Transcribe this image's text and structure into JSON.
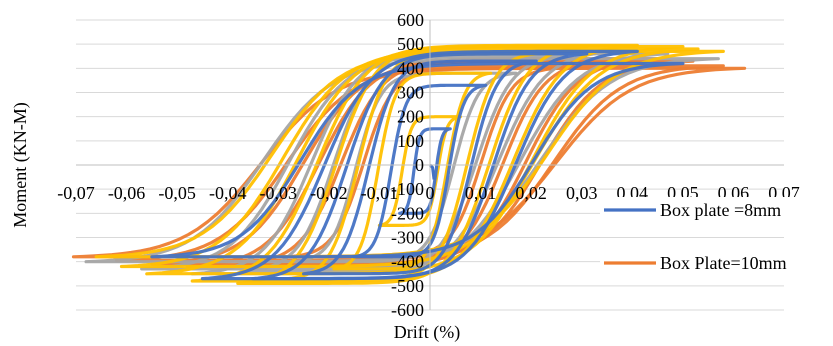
{
  "chart_data": {
    "type": "line",
    "title": "",
    "xlabel": "Drift (%)",
    "ylabel": "Moment (KN-M)",
    "xlim": [
      -0.07,
      0.07
    ],
    "ylim": [
      -600,
      600
    ],
    "x_ticks": [
      -0.07,
      -0.06,
      -0.05,
      -0.04,
      -0.03,
      -0.02,
      -0.01,
      0,
      0.01,
      0.02,
      0.03,
      0.04,
      0.05,
      0.06,
      0.07
    ],
    "x_tick_labels": [
      "-0,07",
      "-0,06",
      "-0,05",
      "-0,04",
      "-0,03",
      "-0,02",
      "-0,01",
      "0",
      "0,01",
      "0,02",
      "0,03",
      "0,04",
      "0,05",
      "0,06",
      "0,07"
    ],
    "y_ticks": [
      -600,
      -500,
      -400,
      -300,
      -200,
      -100,
      0,
      100,
      200,
      300,
      400,
      500,
      600
    ],
    "y_tick_labels": [
      "-600",
      "-500",
      "-400",
      "-300",
      "-200",
      "-100",
      "0",
      "100",
      "200",
      "300",
      "400",
      "500",
      "600"
    ],
    "grid": "horizontal",
    "legend_position": "right",
    "series": [
      {
        "name": "Box Plate=10mm",
        "color": "#ED7D31",
        "cycles": [
          {
            "amp": 0.0622,
            "peak": 400,
            "neg_amp": -0.0705,
            "neg_peak": -380
          },
          {
            "amp": 0.058,
            "peak": 410,
            "neg_amp": -0.062,
            "neg_peak": -395
          },
          {
            "amp": 0.052,
            "peak": 430,
            "neg_amp": -0.055,
            "neg_peak": -410
          },
          {
            "amp": 0.045,
            "peak": 440,
            "neg_amp": -0.048,
            "neg_peak": -420
          },
          {
            "amp": 0.035,
            "peak": 430,
            "neg_amp": -0.038,
            "neg_peak": -410
          },
          {
            "amp": 0.025,
            "peak": 400,
            "neg_amp": -0.028,
            "neg_peak": -380
          }
        ]
      },
      {
        "name": "",
        "color": "#A5A5A5",
        "cycles": [
          {
            "amp": 0.057,
            "peak": 440,
            "neg_amp": -0.068,
            "neg_peak": -400
          },
          {
            "amp": 0.047,
            "peak": 460,
            "neg_amp": -0.057,
            "neg_peak": -430
          },
          {
            "amp": 0.037,
            "peak": 470,
            "neg_amp": -0.047,
            "neg_peak": -450
          },
          {
            "amp": 0.027,
            "peak": 450,
            "neg_amp": -0.037,
            "neg_peak": -440
          },
          {
            "amp": 0.017,
            "peak": 380,
            "neg_amp": -0.027,
            "neg_peak": -400
          }
        ]
      },
      {
        "name": "",
        "color": "#FFC000",
        "cycles": [
          {
            "amp": 0.058,
            "peak": 470,
            "neg_amp": -0.066,
            "neg_peak": -380
          },
          {
            "amp": 0.053,
            "peak": 480,
            "neg_amp": -0.061,
            "neg_peak": -420
          },
          {
            "amp": 0.05,
            "peak": 490,
            "neg_amp": -0.056,
            "neg_peak": -450
          },
          {
            "amp": 0.041,
            "peak": 495,
            "neg_amp": -0.047,
            "neg_peak": -480
          },
          {
            "amp": 0.031,
            "peak": 490,
            "neg_amp": -0.038,
            "neg_peak": -490
          },
          {
            "amp": 0.021,
            "peak": 460,
            "neg_amp": -0.028,
            "neg_peak": -470
          },
          {
            "amp": 0.012,
            "peak": 380,
            "neg_amp": -0.019,
            "neg_peak": -430
          },
          {
            "amp": 0.006,
            "peak": 200,
            "neg_amp": -0.01,
            "neg_peak": -250
          }
        ]
      },
      {
        "name": "Box plate =8mm",
        "color": "#4472C4",
        "cycles": [
          {
            "amp": 0.05,
            "peak": 420,
            "neg_amp": -0.055,
            "neg_peak": -380
          },
          {
            "amp": 0.041,
            "peak": 470,
            "neg_amp": -0.045,
            "neg_peak": -470
          },
          {
            "amp": 0.031,
            "peak": 460,
            "neg_amp": -0.035,
            "neg_peak": -470
          },
          {
            "amp": 0.021,
            "peak": 430,
            "neg_amp": -0.025,
            "neg_peak": -450
          },
          {
            "amp": 0.011,
            "peak": 330,
            "neg_amp": -0.015,
            "neg_peak": -380
          },
          {
            "amp": 0.004,
            "peak": 150,
            "neg_amp": -0.006,
            "neg_peak": -200
          }
        ]
      }
    ],
    "legend": [
      {
        "label": "Box plate =8mm",
        "color": "#4472C4"
      },
      {
        "label": "Box Plate=10mm",
        "color": "#ED7D31"
      }
    ]
  }
}
